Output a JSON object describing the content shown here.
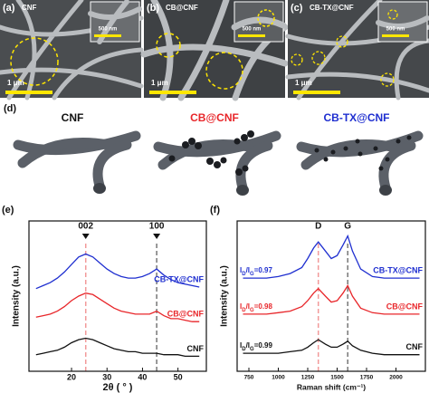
{
  "panels": {
    "a": {
      "label": "(a)",
      "title": "CNF",
      "scale_main": "1 μm",
      "scale_inset": "500 nm"
    },
    "b": {
      "label": "(b)",
      "title": "CB@CNF",
      "scale_main": "1 μm",
      "scale_inset": "500 nm"
    },
    "c": {
      "label": "(c)",
      "title": "CB-TX@CNF",
      "scale_main": "1 μm",
      "scale_inset": "500 nm"
    }
  },
  "panel_d": {
    "label": "(d)",
    "titles": [
      "CNF",
      "CB@CNF",
      "CB-TX@CNF"
    ]
  },
  "chart_data": [
    {
      "type": "line",
      "panel_label": "(e)",
      "xlabel": "2θ ( ° )",
      "ylabel": "Intensity (a.u.)",
      "x": [
        10,
        12,
        14,
        16,
        18,
        20,
        22,
        24,
        26,
        28,
        30,
        32,
        34,
        36,
        38,
        40,
        42,
        44,
        46,
        48,
        50,
        52,
        54,
        56
      ],
      "series": [
        {
          "name": "CNF",
          "color": "#111111",
          "values": [
            11,
            12,
            13,
            14,
            16,
            19,
            21,
            22,
            21,
            19,
            17,
            15,
            14,
            13,
            13,
            12,
            12,
            12,
            11,
            11,
            11,
            10,
            10,
            10
          ]
        },
        {
          "name": "CB@CNF",
          "color": "#e8262a",
          "values": [
            36,
            37,
            38,
            40,
            43,
            47,
            50,
            52,
            51,
            48,
            45,
            42,
            40,
            39,
            38,
            38,
            38,
            40,
            37,
            35,
            35,
            34,
            33,
            33
          ]
        },
        {
          "name": "CB-TX@CNF",
          "color": "#1f2fd0",
          "values": [
            55,
            57,
            59,
            62,
            66,
            71,
            76,
            78,
            76,
            72,
            68,
            65,
            63,
            62,
            62,
            63,
            65,
            68,
            64,
            61,
            59,
            58,
            57,
            56
          ]
        }
      ],
      "xlim": [
        8,
        58
      ],
      "xticks": [
        20,
        30,
        40,
        50
      ],
      "ylim": [
        0,
        100
      ],
      "peaks": [
        {
          "label": "002",
          "x": 24,
          "color": "#f29a9a"
        },
        {
          "label": "100",
          "x": 44,
          "color": "#777777"
        }
      ]
    },
    {
      "type": "line",
      "panel_label": "(f)",
      "xlabel": "Raman shift (cm⁻¹)",
      "ylabel": "Intensity (a.u.)",
      "x": [
        700,
        800,
        900,
        1000,
        1100,
        1200,
        1250,
        1300,
        1340,
        1400,
        1450,
        1500,
        1550,
        1590,
        1630,
        1700,
        1800,
        1900,
        2000,
        2100,
        2200
      ],
      "series": [
        {
          "name": "CNF",
          "color": "#111111",
          "values": [
            12,
            12,
            12,
            12,
            13,
            14,
            16,
            19,
            21,
            18,
            16,
            16,
            18,
            20,
            17,
            14,
            12,
            11,
            11,
            11,
            11
          ]
        },
        {
          "name": "CB@CNF",
          "color": "#e8262a",
          "values": [
            38,
            38,
            38,
            39,
            40,
            43,
            47,
            52,
            55,
            50,
            46,
            47,
            52,
            57,
            50,
            42,
            39,
            38,
            38,
            38,
            38
          ]
        },
        {
          "name": "CB-TX@CNF",
          "color": "#1f2fd0",
          "values": [
            62,
            62,
            62,
            63,
            65,
            69,
            75,
            82,
            86,
            80,
            75,
            77,
            84,
            90,
            80,
            68,
            63,
            62,
            62,
            62,
            62
          ]
        }
      ],
      "xlim": [
        650,
        2250
      ],
      "xticks": [
        750,
        1000,
        1250,
        1500,
        1750,
        2000
      ],
      "ylim": [
        0,
        100
      ],
      "peaks": [
        {
          "label": "D",
          "x": 1340,
          "color": "#f29a9a"
        },
        {
          "label": "G",
          "x": 1590,
          "color": "#777777"
        }
      ],
      "ratio_symbol": "I",
      "ratio_num": "D",
      "ratio_sep": "/I",
      "ratio_den": "G",
      "ratio_labels": [
        "=0.99",
        "=0.98",
        "=0.97"
      ]
    }
  ]
}
